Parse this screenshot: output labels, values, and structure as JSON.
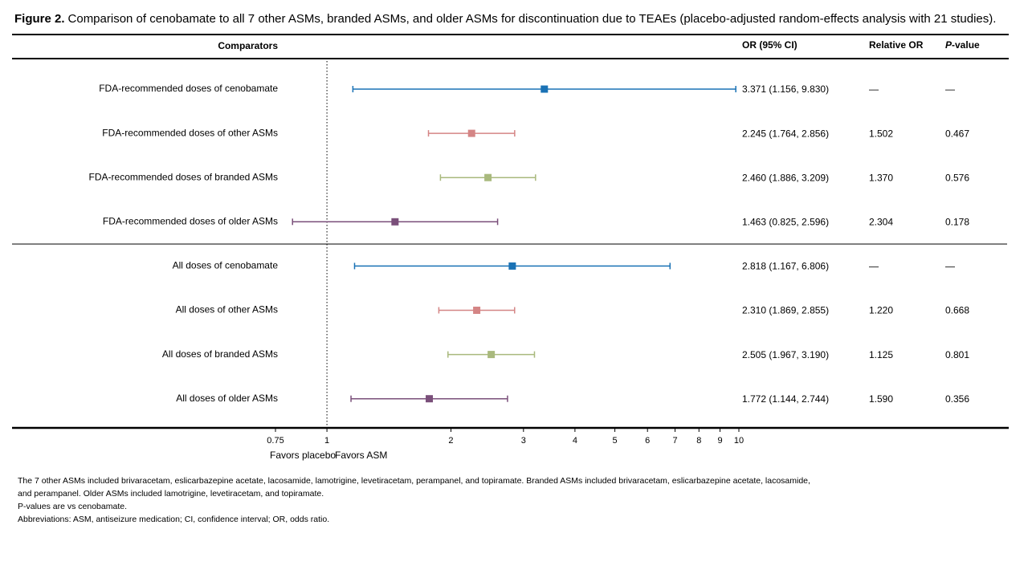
{
  "chart_data": {
    "type": "forest",
    "figure_label": "Figure 2.",
    "title": "Comparison of cenobamate to all 7 other ASMs, branded ASMs, and older ASMs for discontinuation due to TEAEs (placebo-adjusted random-effects analysis with 21 studies).",
    "column_headers": {
      "comparators": "Comparators",
      "or_ci": "OR (95% CI)",
      "relative_or": "Relative OR",
      "p_italic": "P",
      "p_rest": "-value"
    },
    "categories": [
      "FDA-recommended  doses of cenobamate",
      "FDA-recommended  doses of other ASMs",
      "FDA-recommended  doses of branded ASMs",
      "FDA-recommended  doses of older ASMs",
      "All doses of cenobamate",
      "All doses of other ASMs",
      "All doses of branded ASMs",
      "All doses of older ASMs"
    ],
    "values": [
      3.371,
      2.245,
      2.46,
      1.463,
      2.818,
      2.31,
      2.505,
      1.772
    ],
    "lower": [
      1.156,
      1.764,
      1.886,
      0.825,
      1.167,
      1.869,
      1.967,
      1.144
    ],
    "upper": [
      9.83,
      2.856,
      3.209,
      2.596,
      6.806,
      2.855,
      3.19,
      2.744
    ],
    "value_labels": [
      "3.371 (1.156, 9.830)",
      "2.245 (1.764, 2.856)",
      "2.460 (1.886, 3.209)",
      "1.463 (0.825, 2.596)",
      "2.818 (1.167, 6.806)",
      "2.310 (1.869, 2.855)",
      "2.505 (1.967, 3.190)",
      "1.772 (1.144, 2.744)"
    ],
    "relative_or": [
      "—",
      "1.502",
      "1.370",
      "2.304",
      "—",
      "1.220",
      "1.125",
      "1.590"
    ],
    "p_values": [
      "—",
      "0.467",
      "0.576",
      "0.178",
      "—",
      "0.668",
      "0.801",
      "0.356"
    ],
    "colors": [
      "#1a72b5",
      "#d48585",
      "#a9b97d",
      "#7a4f7a",
      "#1a72b5",
      "#d48585",
      "#a9b97d",
      "#7a4f7a"
    ],
    "log_scale": true,
    "xlim": [
      0.75,
      10
    ],
    "xticks": [
      0.75,
      1,
      2,
      3,
      4,
      5,
      6,
      7,
      8,
      9,
      10
    ],
    "reference_line": 1,
    "favors_left": "Favors  placebo",
    "favors_right": "Favors  ASM",
    "footnotes": [
      "The 7 other ASMs included brivaracetam, eslicarbazepine acetate, lacosamide, lamotrigine, levetiracetam, perampanel, and topiramate. Branded ASMs included brivaracetam, eslicarbazepine acetate, lacosamide,",
      "and perampanel. Older ASMs included lamotrigine, levetiracetam, and topiramate.",
      "P-values are vs cenobamate.",
      "Abbreviations: ASM, antiseizure medication; CI, confidence interval; OR, odds ratio."
    ]
  }
}
